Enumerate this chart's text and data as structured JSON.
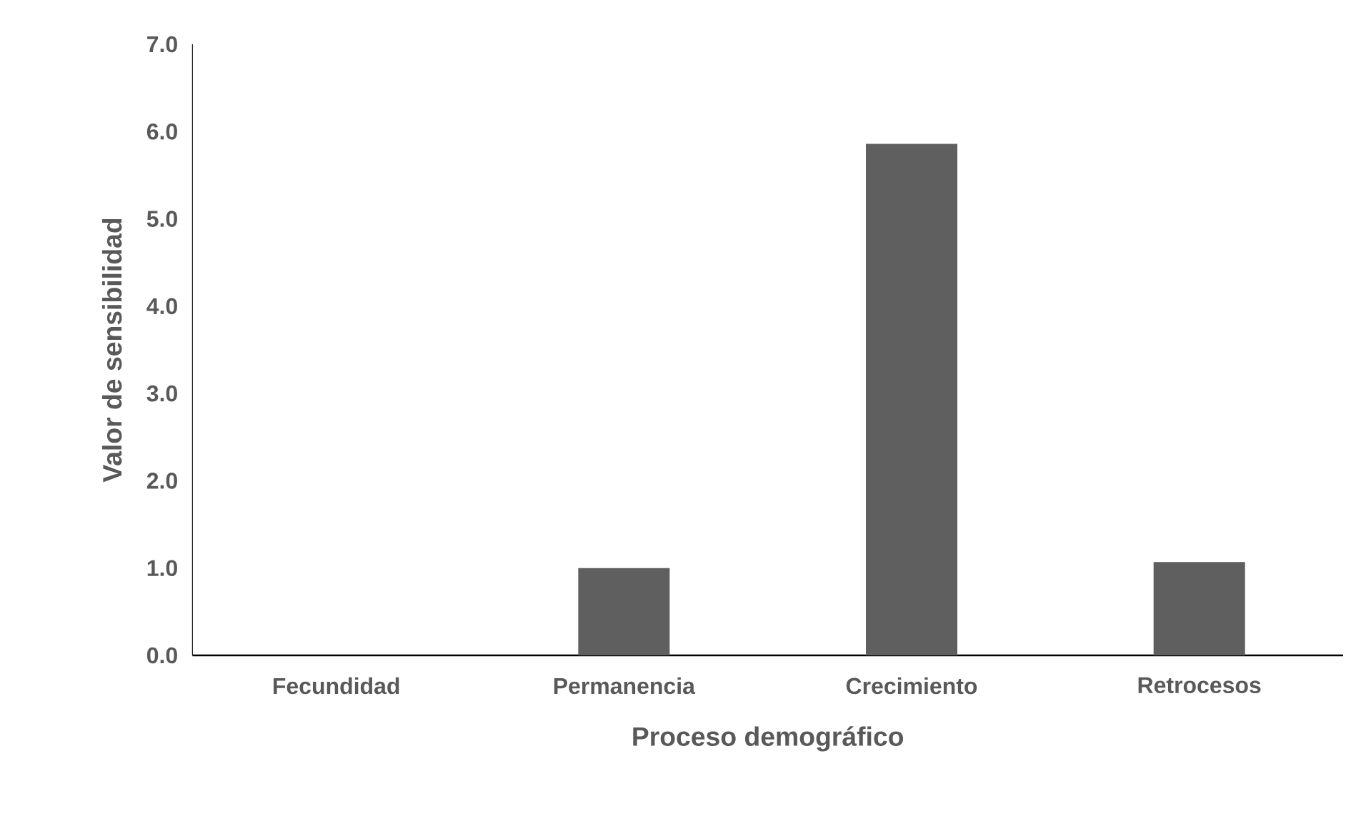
{
  "chart_data": {
    "type": "bar",
    "xlabel": "Proceso demográfico",
    "ylabel": "Valor de sensibilidad",
    "categories": [
      "Fecundidad",
      "Permanencia",
      "Crecimiento",
      "Retrocesos"
    ],
    "values": [
      0,
      1.0,
      5.86,
      1.07
    ],
    "color": "#5f5f5f",
    "ylim": [
      0,
      7
    ],
    "yticks": [
      {
        "value": 0,
        "label": "0.0"
      },
      {
        "value": 1,
        "label": "1.0"
      },
      {
        "value": 2,
        "label": "2.0"
      },
      {
        "value": 3,
        "label": "3.0"
      },
      {
        "value": 4,
        "label": "4.0"
      },
      {
        "value": 5,
        "label": "5.0"
      },
      {
        "value": 6,
        "label": "6.0"
      },
      {
        "value": 7,
        "label": "7.0"
      }
    ],
    "grid": false
  }
}
